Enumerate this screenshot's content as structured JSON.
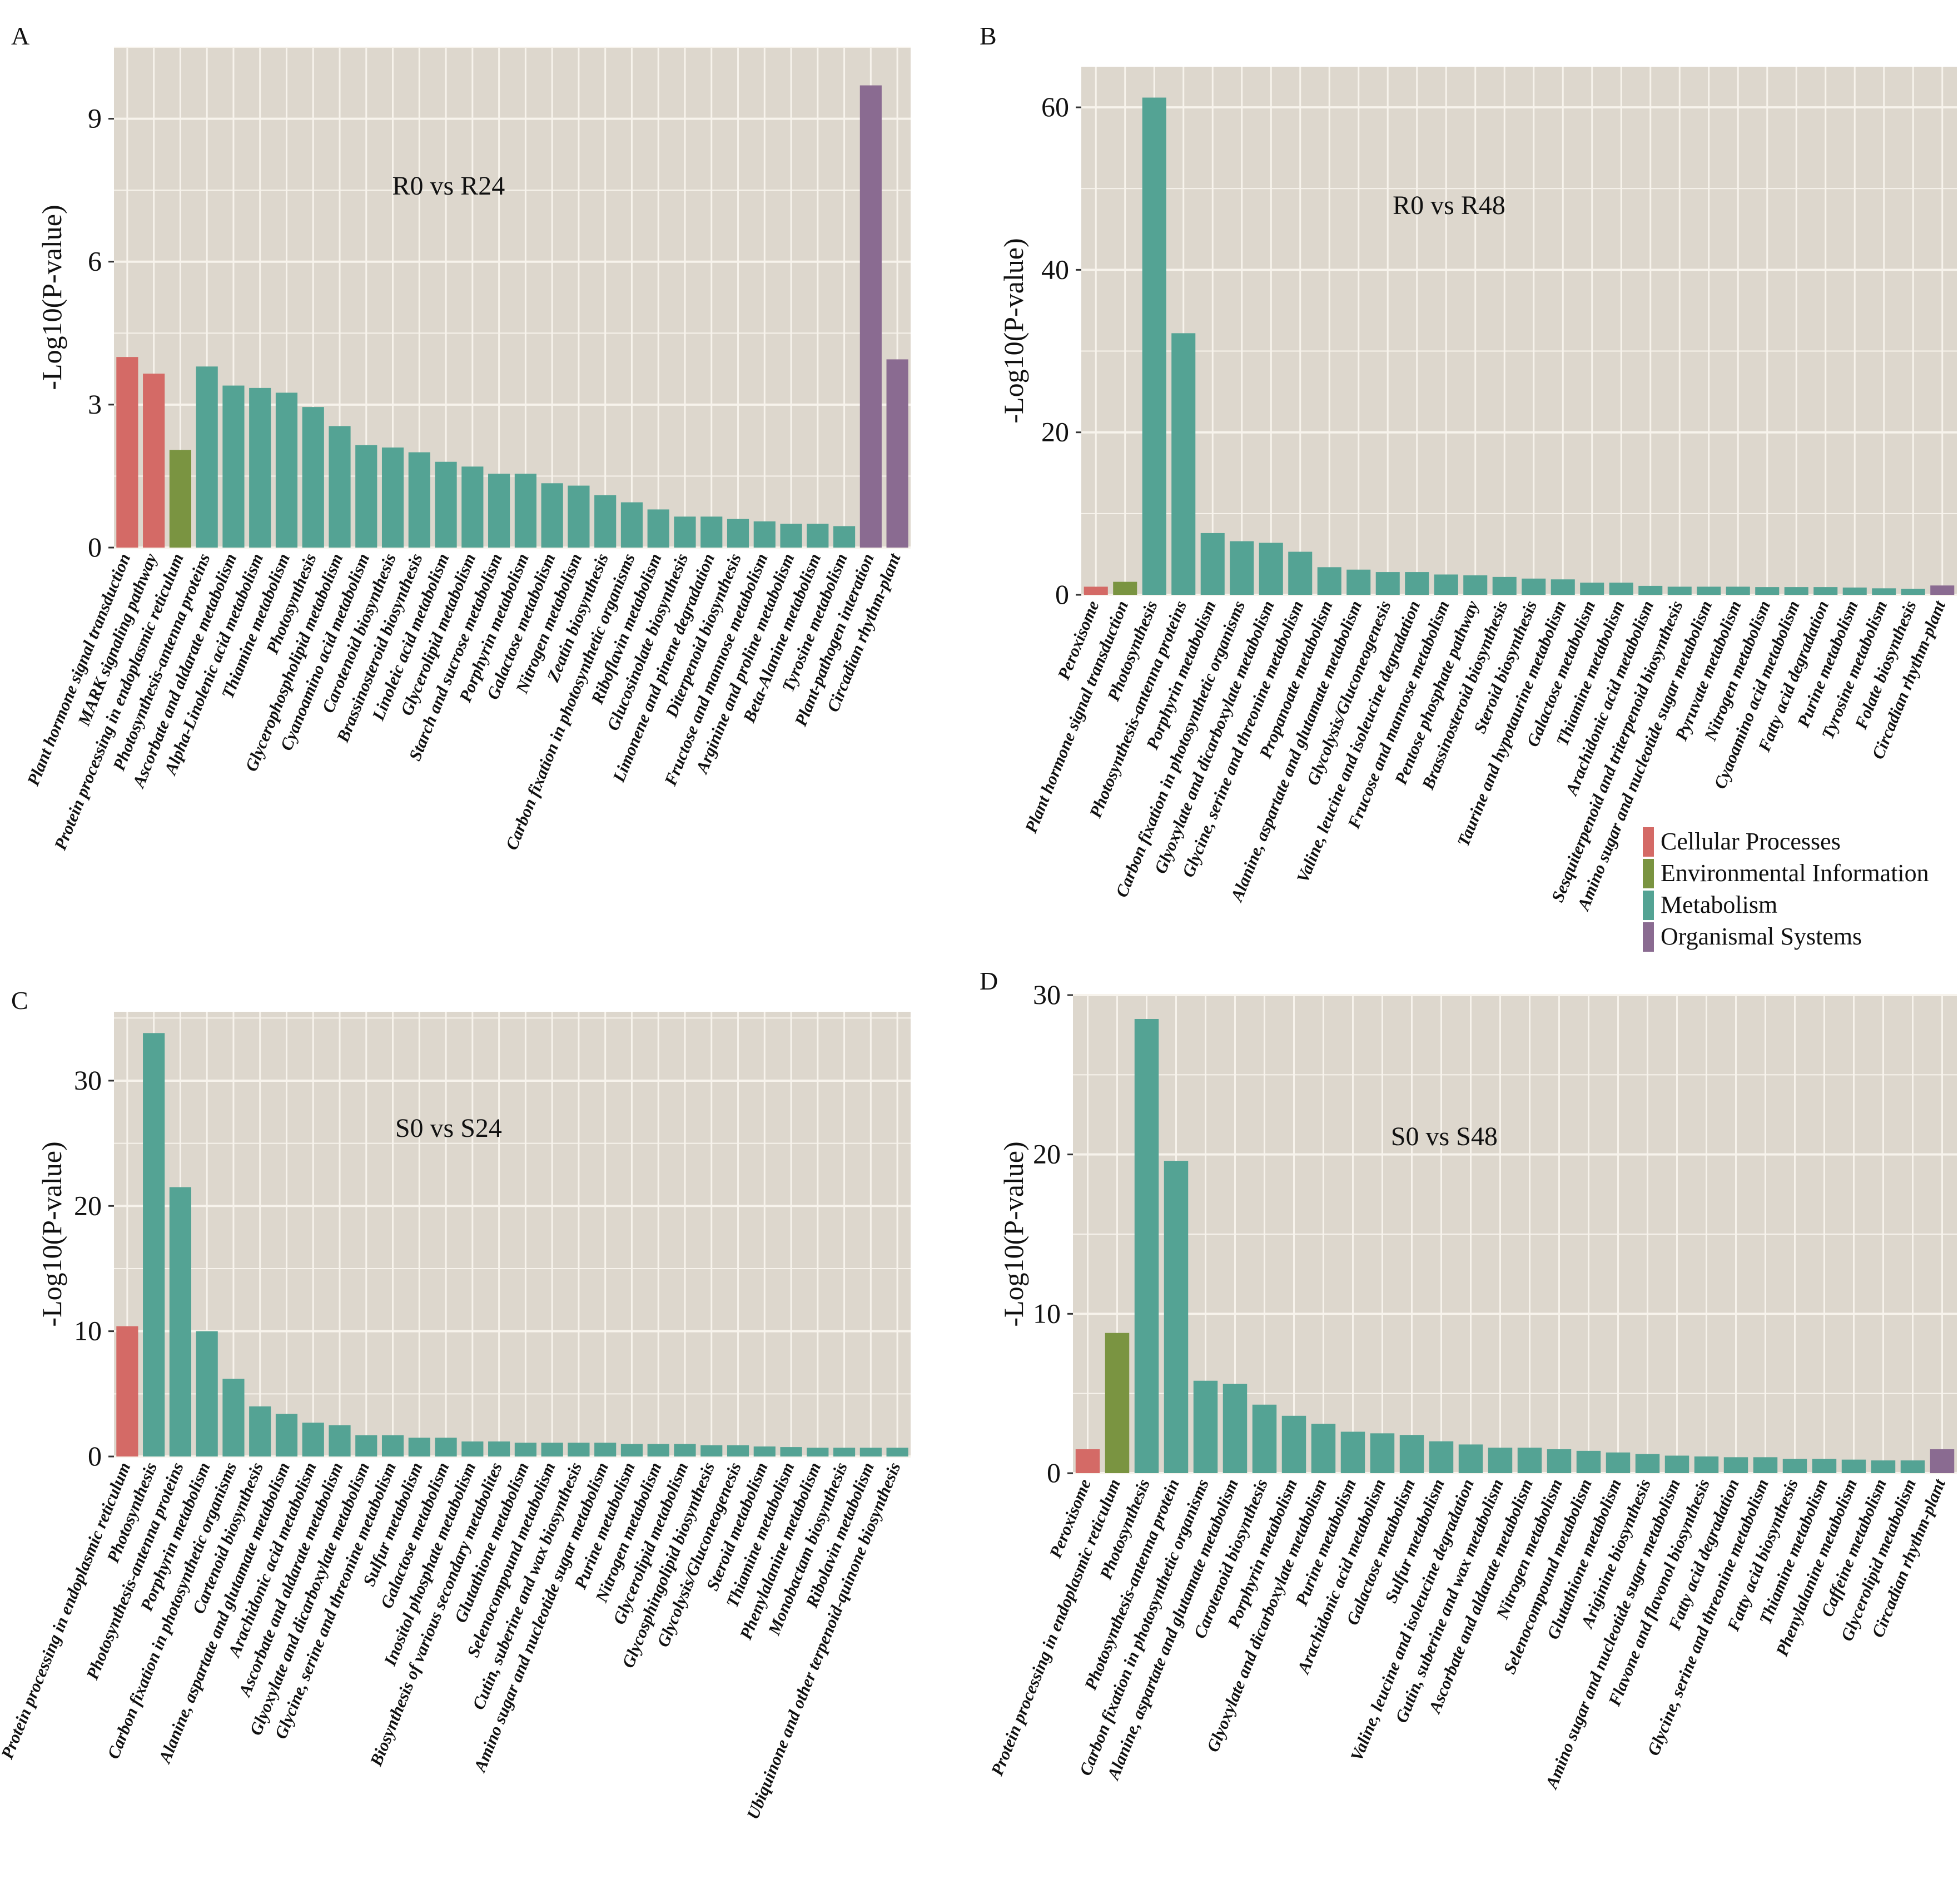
{
  "figure": {
    "colors": {
      "Cellular Processes": "#d46a66",
      "Environmental Information": "#7a9441",
      "Metabolism": "#54a394",
      "Organismal Systems": "#8a6b91",
      "panel_bg": "#ddd7cd",
      "grid": "#f7f3ec"
    },
    "legend": {
      "items": [
        {
          "label": "Cellular Processes",
          "key": "Cellular Processes"
        },
        {
          "label": "Environmental Information",
          "key": "Environmental Information"
        },
        {
          "label": "Metabolism",
          "key": "Metabolism"
        },
        {
          "label": "Organismal Systems",
          "key": "Organismal Systems"
        }
      ],
      "placement": "below panel B, bottom-right"
    }
  },
  "chart_data": [
    {
      "panel": "A",
      "type": "bar",
      "title": "R0 vs R24",
      "xlabel": "",
      "ylabel": "-Log10(P-value)",
      "ylim": [
        0,
        10.5
      ],
      "yticks": [
        0,
        3,
        6,
        9
      ],
      "grid": true,
      "categories": [
        "Plant hormone signal transduction",
        "MARK signaling pathway",
        "Protein processing in endoplasmic reticulum",
        "Photosynthesis-antenna proteins",
        "Ascorbate and aldarate metabolism",
        "Alpha-Linolenic acid metabolism",
        "Thiamine metabolism",
        "Photosynthesis",
        "Glycerophospholipid metabolism",
        "Cyanoamino acid metabolism",
        "Carotenoid biosynthesis",
        "Brassinosteroid biosynthesis",
        "Linoleic acid metabolism",
        "Glycerolipid metabolism",
        "Starch and sucrose metabolism",
        "Porphyrin metabolism",
        "Galactose metabolism",
        "Nitrogen metabolism",
        "Zeatin biosynthesis",
        "Carbon fixation in photosynthetic organisms",
        "Riboflavin metabolism",
        "Glucosinolate biosynthesis",
        "Limonene and pinene degradation",
        "Diterpenoid biosynthesis",
        "Fructose and mannose metabolism",
        "Arginine and proline metabolism",
        "Beta-Alanine metabolism",
        "Tyrosine metabolism",
        "Plant-pathogen interation",
        "Circadian rhythm-plant"
      ],
      "groups": [
        "Cellular Processes",
        "Cellular Processes",
        "Environmental Information",
        "Metabolism",
        "Metabolism",
        "Metabolism",
        "Metabolism",
        "Metabolism",
        "Metabolism",
        "Metabolism",
        "Metabolism",
        "Metabolism",
        "Metabolism",
        "Metabolism",
        "Metabolism",
        "Metabolism",
        "Metabolism",
        "Metabolism",
        "Metabolism",
        "Metabolism",
        "Metabolism",
        "Metabolism",
        "Metabolism",
        "Metabolism",
        "Metabolism",
        "Metabolism",
        "Metabolism",
        "Metabolism",
        "Organismal Systems",
        "Organismal Systems"
      ],
      "values": [
        4.0,
        3.65,
        2.05,
        3.8,
        3.4,
        3.35,
        3.25,
        2.95,
        2.55,
        2.15,
        2.1,
        2.0,
        1.8,
        1.7,
        1.55,
        1.55,
        1.35,
        1.3,
        1.1,
        0.95,
        0.8,
        0.65,
        0.65,
        0.6,
        0.55,
        0.5,
        0.5,
        0.45,
        9.7,
        3.95
      ]
    },
    {
      "panel": "B",
      "type": "bar",
      "title": "R0 vs R48",
      "xlabel": "",
      "ylabel": "-Log10(P-value)",
      "ylim": [
        0,
        65
      ],
      "yticks": [
        0,
        20,
        40,
        60
      ],
      "grid": true,
      "categories": [
        "Peroxisome",
        "Plant hormone signal transduction",
        "Photosynthesis",
        "Photosynthesis-antenna proteins",
        "Porphyrin metabolism",
        "Carbon fixation in photosynthetic organisms",
        "Glyoxylate and dicarboxylate metabolism",
        "Glycine, serine and threonine metabolism",
        "Propanoate metabolism",
        "Alanine, aspartate and glutamate metabolism",
        "Glycolysis/Gluconeogenesis",
        "Valine, leucine and isoleucine degradation",
        "Frucose and mannose metabolism",
        "Pentose phosphate pathway",
        "Brassinosteroid biosynthesis",
        "Steroid biosynthesis",
        "Taurine and hypotaurine metabolism",
        "Galactose metabolism",
        "Thiamine metabolism",
        "Arachidonic acid metabolism",
        "Sesquiterpenoid and triterpenoid biosynthesis",
        "Amino sugar and nucleotide sugar metabolism",
        "Pyruvate metabolism",
        "Nitrogen metabolism",
        "Cyaoamino acid metabolism",
        "Fatty acid degradation",
        "Purine metabolism",
        "Tyrosine metabolism",
        "Folate biosynthesis",
        "Circadian rhythm-plant"
      ],
      "groups": [
        "Cellular Processes",
        "Environmental Information",
        "Metabolism",
        "Metabolism",
        "Metabolism",
        "Metabolism",
        "Metabolism",
        "Metabolism",
        "Metabolism",
        "Metabolism",
        "Metabolism",
        "Metabolism",
        "Metabolism",
        "Metabolism",
        "Metabolism",
        "Metabolism",
        "Metabolism",
        "Metabolism",
        "Metabolism",
        "Metabolism",
        "Metabolism",
        "Metabolism",
        "Metabolism",
        "Metabolism",
        "Metabolism",
        "Metabolism",
        "Metabolism",
        "Metabolism",
        "Metabolism",
        "Organismal Systems"
      ],
      "values": [
        1.0,
        1.6,
        61.2,
        32.2,
        7.6,
        6.6,
        6.4,
        5.3,
        3.4,
        3.1,
        2.8,
        2.8,
        2.5,
        2.4,
        2.2,
        2.0,
        1.9,
        1.5,
        1.5,
        1.1,
        1.0,
        1.0,
        1.0,
        0.95,
        0.95,
        0.95,
        0.9,
        0.8,
        0.75,
        1.15
      ]
    },
    {
      "panel": "C",
      "type": "bar",
      "title": "S0 vs S24",
      "xlabel": "",
      "ylabel": "-Log10(P-value)",
      "ylim": [
        0,
        35.5
      ],
      "yticks": [
        0,
        10,
        20,
        30
      ],
      "grid": true,
      "categories": [
        "Protein processing in endoplasmic reticulum",
        "Photosynthesis",
        "Photosynthesis-antenna proteins",
        "Porphyrin metabolism",
        "Carbon fixation in photosynthetic organisms",
        "Cartenoid biosynthesis",
        "Alanine, aspartate and glutamate metabolism",
        "Arachidonic acid metabolism",
        "Ascorbate and aldarate metabolism",
        "Glyoxylate and dicarboxylate metabolism",
        "Glycine, serine and threonine metabolism",
        "Sulfur metabolism",
        "Galactose metabolism",
        "Inositol phosphate metabolism",
        "Biosynthesis of various secondary metabolites",
        "Glutathione metabolism",
        "Selenocompound metabolism",
        "Cutin, suberine and wax biosynthesis",
        "Amino sugar and nucleotide sugar metabolism",
        "Purine metabolism",
        "Nitrogen metabolism",
        "Glycerolipid metabolism",
        "Glycosphingolipid biosynthesis",
        "Glycolysis/Gluconeogenesis",
        "Steroid metabolism",
        "Thiamine metabolism",
        "Phenylalanine metabolism",
        "Monobactam biosynthesis",
        "Ribolavin metabolism",
        "Ubiquinone and other terpenoid-quinone biosynthesis"
      ],
      "groups": [
        "Cellular Processes",
        "Metabolism",
        "Metabolism",
        "Metabolism",
        "Metabolism",
        "Metabolism",
        "Metabolism",
        "Metabolism",
        "Metabolism",
        "Metabolism",
        "Metabolism",
        "Metabolism",
        "Metabolism",
        "Metabolism",
        "Metabolism",
        "Metabolism",
        "Metabolism",
        "Metabolism",
        "Metabolism",
        "Metabolism",
        "Metabolism",
        "Metabolism",
        "Metabolism",
        "Metabolism",
        "Metabolism",
        "Metabolism",
        "Metabolism",
        "Metabolism",
        "Metabolism",
        "Metabolism"
      ],
      "values": [
        10.4,
        33.8,
        21.5,
        10.0,
        6.2,
        4.0,
        3.4,
        2.7,
        2.5,
        1.7,
        1.7,
        1.5,
        1.5,
        1.2,
        1.2,
        1.1,
        1.1,
        1.1,
        1.1,
        1.0,
        1.0,
        1.0,
        0.9,
        0.9,
        0.8,
        0.75,
        0.7,
        0.7,
        0.7,
        0.7
      ]
    },
    {
      "panel": "D",
      "type": "bar",
      "title": "S0 vs S48",
      "xlabel": "",
      "ylabel": "-Log10(P-value)",
      "ylim": [
        0,
        30
      ],
      "yticks": [
        0,
        10,
        20,
        30
      ],
      "grid": true,
      "categories": [
        "Peroxisome",
        "Protein processing in endoplasmic reticulum",
        "Photosynthesis",
        "Photosynthesis-antenna protein",
        "Carbon fixation in photosynthetic organisms",
        "Alanine, aspartate and glutamate metabolism",
        "Carotenoid biosynthesis",
        "Porphyrin metabolism",
        "Glyoxylate and dicarboxylate metabolism",
        "Purine metabolism",
        "Arachidonic acid metabolism",
        "Galactose metabolism",
        "Sulfur metabolism",
        "Valine, leucine and isoleucine degradation",
        "Gutin, suberine and wax metabolism",
        "Ascorbate and aldarate metabolism",
        "Nitrogen metabolism",
        "Selenocompound metabolism",
        "Glutathione metabolism",
        "Ariginine biosynthesis",
        "Amino sugar and nucleotide sugar metabolism",
        "Flavone and flavonol biosynthesis",
        "Fatty acid degradation",
        "Glycine, serine and threonine metabolism",
        "Fatty acid biosynthesis",
        "Thiamine metabolism",
        "Phenylalanine metabolism",
        "Caffeine metabolism",
        "Glycerolipid metabolism",
        "Circadian rhythm-plant"
      ],
      "groups": [
        "Cellular Processes",
        "Environmental Information",
        "Metabolism",
        "Metabolism",
        "Metabolism",
        "Metabolism",
        "Metabolism",
        "Metabolism",
        "Metabolism",
        "Metabolism",
        "Metabolism",
        "Metabolism",
        "Metabolism",
        "Metabolism",
        "Metabolism",
        "Metabolism",
        "Metabolism",
        "Metabolism",
        "Metabolism",
        "Metabolism",
        "Metabolism",
        "Metabolism",
        "Metabolism",
        "Metabolism",
        "Metabolism",
        "Metabolism",
        "Metabolism",
        "Metabolism",
        "Metabolism",
        "Organismal Systems"
      ],
      "values": [
        1.5,
        8.8,
        28.5,
        19.6,
        5.8,
        5.6,
        4.3,
        3.6,
        3.1,
        2.6,
        2.5,
        2.4,
        2.0,
        1.8,
        1.6,
        1.6,
        1.5,
        1.4,
        1.3,
        1.2,
        1.1,
        1.05,
        1.0,
        1.0,
        0.9,
        0.9,
        0.85,
        0.8,
        0.8,
        1.5
      ]
    }
  ]
}
